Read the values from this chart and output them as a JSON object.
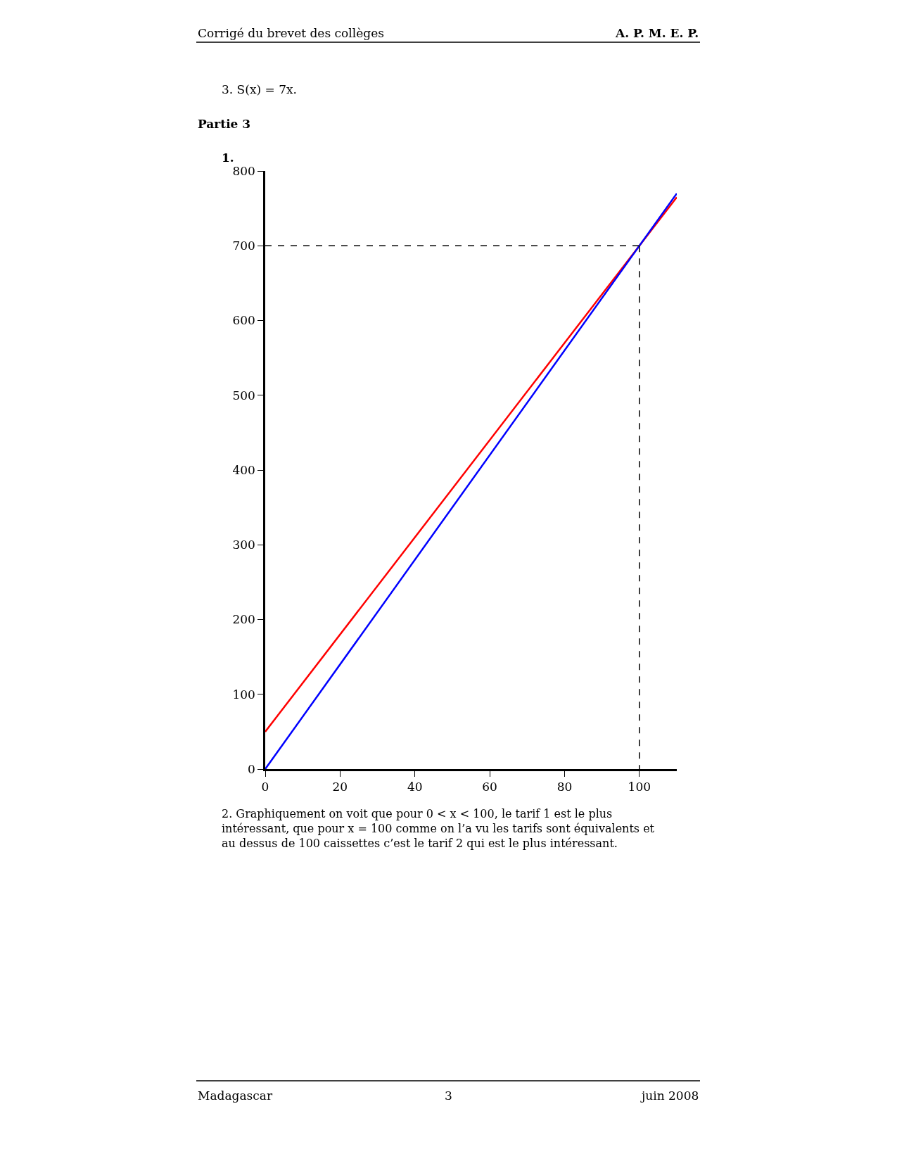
{
  "chart_data": {
    "type": "line",
    "annotations": [
      "Corrigé du brevet des collèges",
      "A. P. M. E. P.",
      "3. S(x) = 7x.",
      "Partie 3",
      "1.",
      "2. Graphiquement on voit que pour 0 < x < 100, le tarif 1 est le plus intéressant, que pour x = 100 comme on l’a vu les tarifs sont équivalents et au dessus de 100 caissettes c’est le tarif 2 qui est le plus intéressant.",
      "Madagascar",
      "3",
      "juin 2008"
    ],
    "series": [
      {
        "color": "#ff0000",
        "x": [
          0,
          110
        ],
        "values": [
          50,
          765
        ]
      },
      {
        "color": "#0000ff",
        "x": [
          0,
          110
        ],
        "values": [
          0,
          770
        ]
      },
      {
        "color": "#000000",
        "x": [
          0,
          100
        ],
        "values": [
          700,
          700
        ],
        "line_style": "dashed"
      },
      {
        "color": "#000000",
        "x": [
          100,
          100
        ],
        "values": [
          700,
          0
        ],
        "line_style": "dashed"
      }
    ],
    "xlim": [
      0,
      110
    ],
    "ylim": [
      0,
      800
    ],
    "xticks": [
      0,
      20,
      40,
      60,
      80,
      100
    ],
    "yticks": [
      0,
      100,
      200,
      300,
      400,
      500,
      600,
      700,
      800
    ]
  }
}
